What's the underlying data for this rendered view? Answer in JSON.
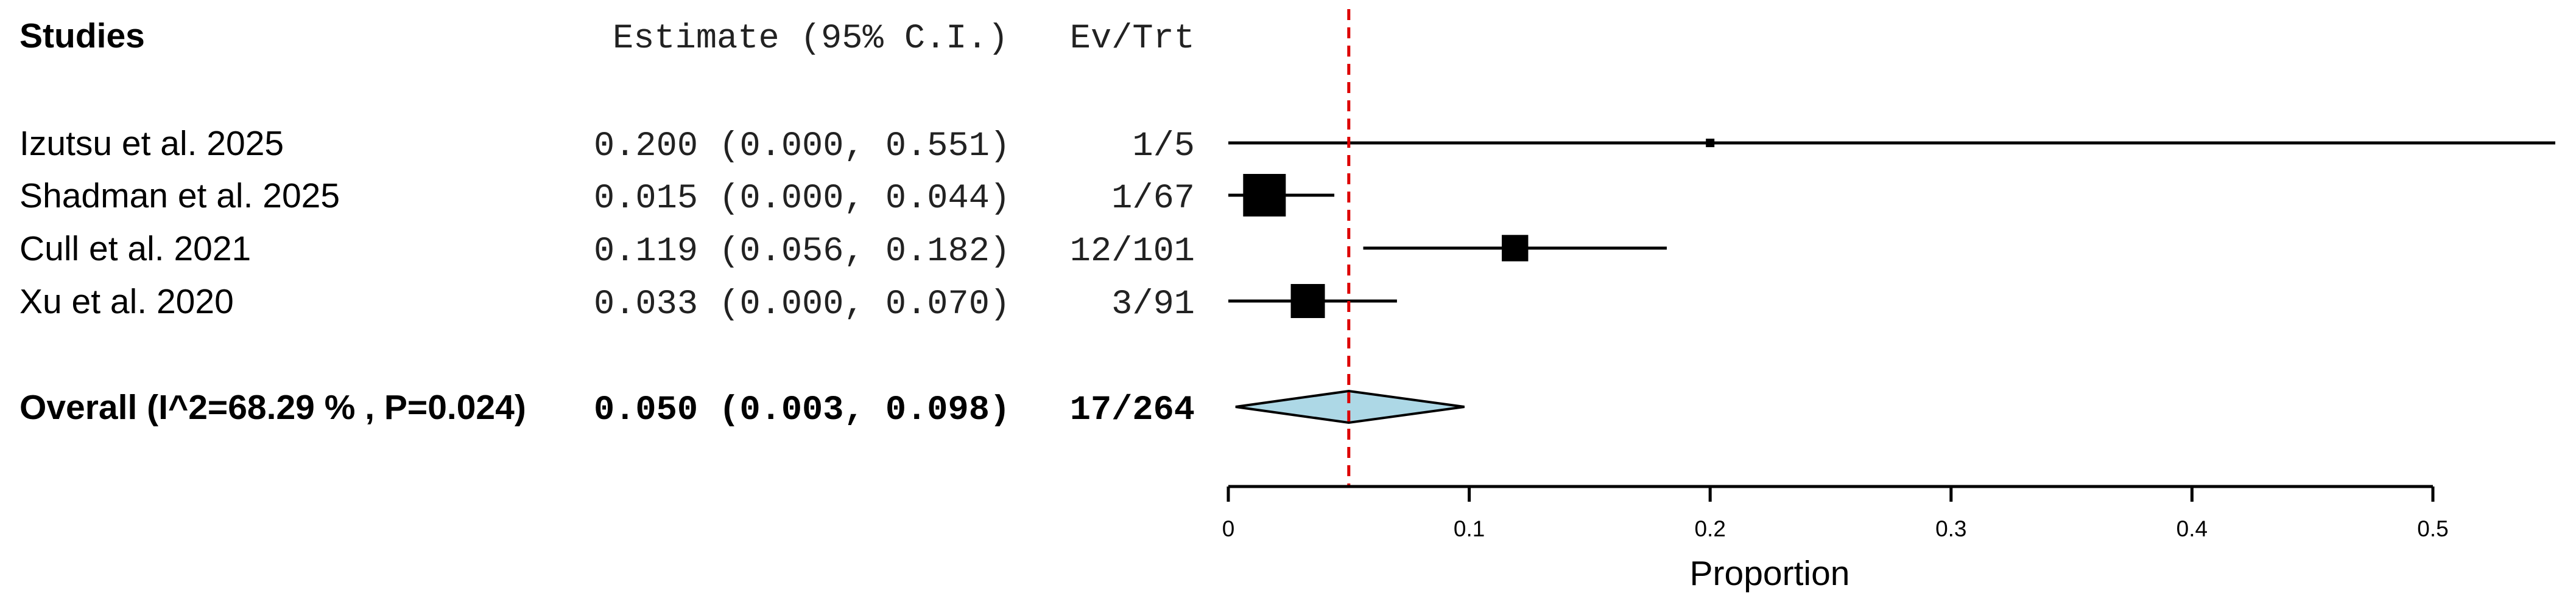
{
  "header": {
    "studies_label": "Studies",
    "estimate_label": "Estimate (95% C.I.)",
    "evtrt_label": "Ev/Trt"
  },
  "chart_data": {
    "type": "forest",
    "xlabel": "Proportion",
    "xlim": [
      0,
      0.5
    ],
    "xticks": [
      "0",
      "0.1",
      "0.2",
      "0.3",
      "0.4",
      "0.5"
    ],
    "reference_line": 0.05,
    "colors": {
      "diamond": "#add8e6",
      "reference": "#dd0000",
      "marks": "#000000"
    },
    "studies": [
      {
        "label": "Izutsu et al. 2025",
        "estimate": 0.2,
        "lower": 0.0,
        "upper": 0.551,
        "estimate_text": "0.200 (0.000, 0.551)",
        "events_text": "1/5",
        "box_scale": 0.2
      },
      {
        "label": "Shadman et al. 2025",
        "estimate": 0.015,
        "lower": 0.0,
        "upper": 0.044,
        "estimate_text": "0.015 (0.000, 0.044)",
        "events_text": "1/67",
        "box_scale": 1.0
      },
      {
        "label": "Cull et al. 2021",
        "estimate": 0.119,
        "lower": 0.056,
        "upper": 0.182,
        "estimate_text": "0.119 (0.056, 0.182)",
        "events_text": "12/101",
        "box_scale": 0.62
      },
      {
        "label": "Xu et al. 2020",
        "estimate": 0.033,
        "lower": 0.0,
        "upper": 0.07,
        "estimate_text": "0.033 (0.000, 0.070)",
        "events_text": "3/91",
        "box_scale": 0.8
      }
    ],
    "overall": {
      "label": "Overall (I^2=68.29 % , P=0.024)",
      "estimate": 0.05,
      "lower": 0.003,
      "upper": 0.098,
      "estimate_text": "0.050 (0.003, 0.098)",
      "events_text": "17/264"
    }
  }
}
